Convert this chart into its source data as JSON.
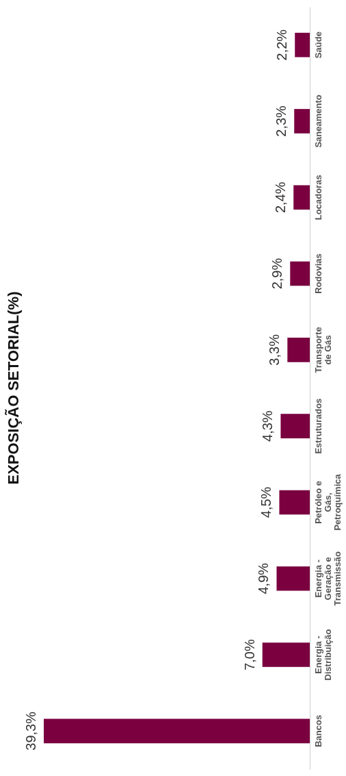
{
  "chart_data": {
    "type": "bar",
    "title": "EXPOSIÇÃO SETORIAL(%)",
    "orientation": "horizontal",
    "categories": [
      "Saúde",
      "Saneamento",
      "Locadoras",
      "Rodovias",
      "Transporte de Gás",
      "Estruturados",
      "Petróleo e Gás, Petroquímica",
      "Energia - Geração e Transmissão",
      "Energia - Distribuição",
      "Bancos"
    ],
    "values": [
      2.2,
      2.3,
      2.4,
      2.9,
      3.3,
      4.3,
      4.5,
      4.9,
      7.0,
      39.3
    ],
    "value_labels": [
      "2,2%",
      "2,3%",
      "2,4%",
      "2,9%",
      "3,3%",
      "4,3%",
      "4,5%",
      "4,9%",
      "7,0%",
      "39,3%"
    ],
    "color": "#7a0040",
    "grid": false
  }
}
